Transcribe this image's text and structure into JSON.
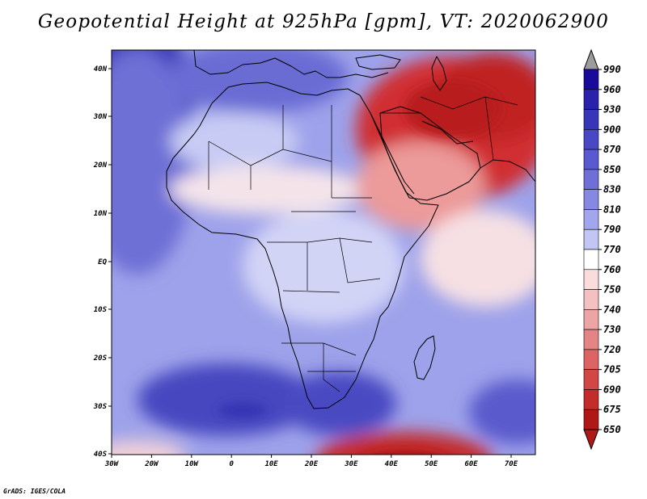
{
  "header": {
    "title": "Geopotential Height at 925hPa [gpm], VT: 2020062900"
  },
  "footer": {
    "credit": "GrADS: IGES/COLA"
  },
  "map": {
    "longitude_labels": [
      "30W",
      "20W",
      "10W",
      "0",
      "10E",
      "20E",
      "30E",
      "40E",
      "50E",
      "60E",
      "70E"
    ],
    "latitude_labels": [
      "40N",
      "30N",
      "20N",
      "10N",
      "EQ",
      "10S",
      "20S",
      "30S",
      "40S"
    ],
    "region": "Africa and Middle East",
    "lon_range": [
      -30,
      75
    ],
    "lat_range": [
      -40,
      45
    ]
  },
  "colorbar": {
    "levels": [
      "990",
      "960",
      "930",
      "900",
      "870",
      "850",
      "830",
      "810",
      "790",
      "770",
      "760",
      "750",
      "740",
      "730",
      "720",
      "705",
      "690",
      "675",
      "650"
    ],
    "colors": [
      "#9c9c9c",
      "#1a0a9c",
      "#2a22aa",
      "#3836b8",
      "#4848c4",
      "#5a5ad0",
      "#6e70d8",
      "#8688e2",
      "#a2a6ec",
      "#c2c6f4",
      "#ffffff",
      "#fadcdc",
      "#f4c0c0",
      "#eca4a4",
      "#e48484",
      "#dc6464",
      "#d24646",
      "#c42c2c",
      "#b01818"
    ],
    "units": "gpm"
  },
  "colors": {
    "high_blue": "#3a3ab8",
    "mid_blue": "#8a8ce4",
    "light_blue": "#c4c8f4",
    "neutral": "#ffffff",
    "light_red": "#f4c4c4",
    "deep_red": "#c42a2a",
    "frame": "#000000"
  }
}
